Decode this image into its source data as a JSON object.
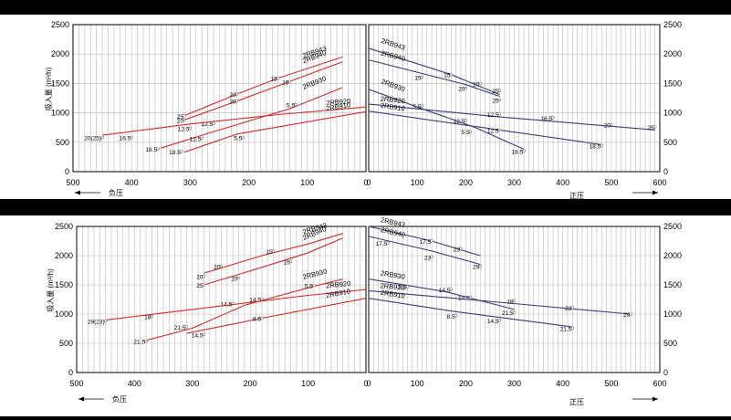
{
  "chart_data": [
    {
      "type": "line",
      "ylabel": "吸入量 (m³/h)",
      "left": {
        "xlim": [
          500,
          0
        ],
        "ylim": [
          0,
          2500
        ],
        "xticks": [
          500,
          400,
          300,
          200,
          100,
          0
        ],
        "yticks": [
          0,
          500,
          1000,
          1500,
          2000,
          2500
        ],
        "xlabel": "负压",
        "series": [
          {
            "name": "2RB943",
            "points": [
              [
                310,
                950
              ],
              [
                220,
                1320
              ],
              [
                150,
                1590
              ],
              [
                40,
                1950
              ]
            ],
            "labels": [
              {
                "x": 310,
                "y": 950,
                "text": "25"
              },
              {
                "x": 220,
                "y": 1320,
                "text": "20"
              },
              {
                "x": 150,
                "y": 1590,
                "text": "15"
              }
            ]
          },
          {
            "name": "2RB940",
            "points": [
              [
                310,
                880
              ],
              [
                220,
                1200
              ],
              [
                150,
                1460
              ],
              [
                40,
                1870
              ]
            ],
            "labels": [
              {
                "x": 310,
                "y": 880,
                "text": "20"
              },
              {
                "x": 220,
                "y": 1200,
                "text": "20"
              },
              {
                "x": 130,
                "y": 1530,
                "text": "15"
              }
            ]
          },
          {
            "name": "2RB930",
            "points": [
              [
                350,
                400
              ],
              [
                270,
                650
              ],
              [
                130,
                1070
              ],
              [
                40,
                1430
              ]
            ],
            "labels": [
              {
                "x": 355,
                "y": 385,
                "text": "18.5"
              },
              {
                "x": 300,
                "y": 740,
                "text": "12.5"
              },
              {
                "x": 260,
                "y": 820,
                "text": "12.5"
              },
              {
                "x": 120,
                "y": 1140,
                "text": "5.5"
              }
            ]
          },
          {
            "name": "2RB920",
            "points": [
              [
                450,
                620
              ],
              [
                300,
                810
              ],
              [
                150,
                970
              ],
              [
                0,
                1100
              ]
            ],
            "labels": [
              {
                "x": 450,
                "y": 580,
                "text": "20(25)"
              },
              {
                "x": 400,
                "y": 580,
                "text": "16.5"
              }
            ]
          },
          {
            "name": "2RB910",
            "points": [
              [
                310,
                330
              ],
              [
                220,
                640
              ],
              [
                0,
                1020
              ]
            ],
            "labels": [
              {
                "x": 315,
                "y": 340,
                "text": "18.5"
              },
              {
                "x": 280,
                "y": 570,
                "text": "12.5"
              },
              {
                "x": 210,
                "y": 580,
                "text": "5.5"
              }
            ]
          }
        ]
      },
      "right": {
        "xlim": [
          0,
          600
        ],
        "ylim": [
          0,
          2500
        ],
        "xticks": [
          0,
          100,
          200,
          300,
          400,
          500,
          600
        ],
        "yticks": [
          0,
          500,
          1000,
          1500,
          2000,
          2500
        ],
        "xlabel": "正压",
        "series": [
          {
            "name": "2RB943",
            "points": [
              [
                0,
                2100
              ],
              [
                170,
                1650
              ],
              [
                270,
                1310
              ]
            ],
            "labels": [
              {
                "x": 170,
                "y": 1650,
                "text": "15"
              },
              {
                "x": 230,
                "y": 1500,
                "text": "20"
              },
              {
                "x": 270,
                "y": 1380,
                "text": "25"
              }
            ]
          },
          {
            "name": "2RB940",
            "points": [
              [
                0,
                1900
              ],
              [
                200,
                1480
              ],
              [
                270,
                1280
              ]
            ],
            "labels": [
              {
                "x": 110,
                "y": 1610,
                "text": "15"
              },
              {
                "x": 200,
                "y": 1420,
                "text": "20"
              },
              {
                "x": 270,
                "y": 1220,
                "text": "25"
              }
            ]
          },
          {
            "name": "2RB930",
            "points": [
              [
                0,
                1400
              ],
              [
                100,
                1100
              ],
              [
                220,
                750
              ],
              [
                320,
                380
              ]
            ],
            "labels": [
              {
                "x": 110,
                "y": 1120,
                "text": "5.5"
              },
              {
                "x": 200,
                "y": 870,
                "text": "12.5"
              },
              {
                "x": 320,
                "y": 350,
                "text": "18.5"
              }
            ]
          },
          {
            "name": "2RB920",
            "points": [
              [
                0,
                1150
              ],
              [
                270,
                930
              ],
              [
                590,
                710
              ]
            ],
            "labels": [
              {
                "x": 270,
                "y": 980,
                "text": "12.5"
              },
              {
                "x": 380,
                "y": 920,
                "text": "16.5"
              },
              {
                "x": 500,
                "y": 800,
                "text": "20"
              },
              {
                "x": 590,
                "y": 760,
                "text": "25"
              }
            ]
          },
          {
            "name": "2RB910",
            "points": [
              [
                0,
                1030
              ],
              [
                200,
                790
              ],
              [
                480,
                460
              ]
            ],
            "labels": [
              {
                "x": 210,
                "y": 680,
                "text": "5.5"
              },
              {
                "x": 270,
                "y": 710,
                "text": "12.5"
              },
              {
                "x": 480,
                "y": 440,
                "text": "18.5"
              }
            ]
          }
        ]
      }
    },
    {
      "type": "line",
      "ylabel": "吸入量 (m³/h)",
      "left": {
        "xlim": [
          500,
          0
        ],
        "ylim": [
          0,
          2500
        ],
        "xticks": [
          500,
          400,
          300,
          200,
          100,
          0
        ],
        "yticks": [
          0,
          500,
          1000,
          1500,
          2000,
          2500
        ],
        "xlabel": "负压",
        "series": [
          {
            "name": "2RB943",
            "points": [
              [
                280,
                1700
              ],
              [
                180,
                2000
              ],
              [
                100,
                2200
              ],
              [
                40,
                2380
              ]
            ],
            "labels": [
              {
                "x": 280,
                "y": 1650,
                "text": "20"
              },
              {
                "x": 250,
                "y": 1820,
                "text": "20"
              },
              {
                "x": 160,
                "y": 2080,
                "text": "15"
              }
            ]
          },
          {
            "name": "2RB940",
            "points": [
              [
                280,
                1500
              ],
              [
                180,
                1800
              ],
              [
                100,
                2050
              ],
              [
                40,
                2300
              ]
            ],
            "labels": [
              {
                "x": 280,
                "y": 1500,
                "text": "25"
              },
              {
                "x": 220,
                "y": 1620,
                "text": "20"
              },
              {
                "x": 130,
                "y": 1900,
                "text": "15"
              }
            ]
          },
          {
            "name": "2RB930",
            "points": [
              [
                380,
                550
              ],
              [
                300,
                760
              ],
              [
                210,
                1150
              ],
              [
                100,
                1450
              ],
              [
                40,
                1600
              ]
            ],
            "labels": [
              {
                "x": 380,
                "y": 540,
                "text": "21.5"
              },
              {
                "x": 310,
                "y": 780,
                "text": "21.5"
              },
              {
                "x": 230,
                "y": 1180,
                "text": "14.5"
              },
              {
                "x": 180,
                "y": 1260,
                "text": "14.5"
              },
              {
                "x": 90,
                "y": 1490,
                "text": "5.5"
              }
            ]
          },
          {
            "name": "2RB920",
            "points": [
              [
                450,
                900
              ],
              [
                300,
                1080
              ],
              [
                200,
                1200
              ],
              [
                100,
                1320
              ],
              [
                0,
                1420
              ]
            ],
            "labels": [
              {
                "x": 450,
                "y": 880,
                "text": "29(23)"
              },
              {
                "x": 370,
                "y": 960,
                "text": "18"
              }
            ]
          },
          {
            "name": "2RB910",
            "points": [
              [
                310,
                670
              ],
              [
                180,
                930
              ],
              [
                0,
                1270
              ]
            ],
            "labels": [
              {
                "x": 280,
                "y": 650,
                "text": "14.5"
              },
              {
                "x": 180,
                "y": 930,
                "text": "8.5"
              }
            ]
          }
        ]
      },
      "right": {
        "xlim": [
          0,
          600
        ],
        "ylim": [
          0,
          2500
        ],
        "xticks": [
          0,
          100,
          200,
          300,
          400,
          500,
          600
        ],
        "yticks": [
          0,
          500,
          1000,
          1500,
          2000,
          2500
        ],
        "xlabel": "正压",
        "series": [
          {
            "name": "2RB943",
            "points": [
              [
                0,
                2500
              ],
              [
                130,
                2250
              ],
              [
                230,
                2000
              ]
            ],
            "labels": [
              {
                "x": 130,
                "y": 2250,
                "text": "17.5"
              },
              {
                "x": 190,
                "y": 2120,
                "text": "23"
              }
            ]
          },
          {
            "name": "2RB940",
            "points": [
              [
                0,
                2330
              ],
              [
                130,
                2080
              ],
              [
                230,
                1850
              ]
            ],
            "labels": [
              {
                "x": 40,
                "y": 2220,
                "text": "17.5"
              },
              {
                "x": 130,
                "y": 1980,
                "text": "23"
              },
              {
                "x": 230,
                "y": 1820,
                "text": "29"
              }
            ]
          },
          {
            "name": "2RB930",
            "points": [
              [
                0,
                1600
              ],
              [
                160,
                1380
              ],
              [
                300,
                1080
              ]
            ],
            "labels": [
              {
                "x": 80,
                "y": 1470,
                "text": "5.5"
              },
              {
                "x": 170,
                "y": 1420,
                "text": "14.5"
              },
              {
                "x": 210,
                "y": 1290,
                "text": "14.5"
              },
              {
                "x": 300,
                "y": 1030,
                "text": "21.5"
              }
            ]
          },
          {
            "name": "2RB920",
            "points": [
              [
                0,
                1400
              ],
              [
                300,
                1180
              ],
              [
                540,
                1000
              ]
            ],
            "labels": [
              {
                "x": 300,
                "y": 1230,
                "text": "18"
              },
              {
                "x": 420,
                "y": 1110,
                "text": "23"
              },
              {
                "x": 540,
                "y": 1000,
                "text": "29"
              }
            ]
          },
          {
            "name": "2RB910",
            "points": [
              [
                0,
                1270
              ],
              [
                180,
                1040
              ],
              [
                420,
                780
              ]
            ],
            "labels": [
              {
                "x": 180,
                "y": 970,
                "text": "8.5"
              },
              {
                "x": 270,
                "y": 890,
                "text": "14.5"
              },
              {
                "x": 420,
                "y": 760,
                "text": "21.5"
              }
            ]
          }
        ]
      }
    }
  ],
  "colors": {
    "left_series": "#d42b2b",
    "right_series": "#3b3d7a",
    "grid": "#bbbbbb",
    "axis": "#000000",
    "bars": "#000000"
  }
}
